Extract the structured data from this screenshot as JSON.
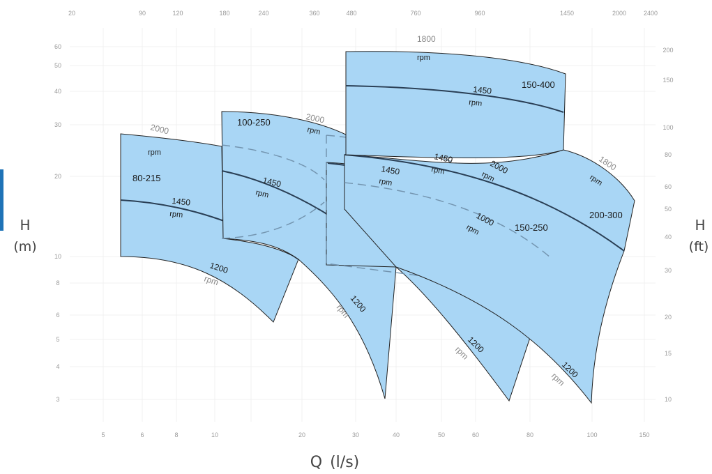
{
  "chart_data": {
    "type": "area",
    "title": "",
    "xlabel": "Q (l/s)",
    "ylabel_left": "H\n(m)",
    "ylabel_right": "H\n(ft)",
    "x_scale": "log",
    "y_scale": "log",
    "xlim": [
      4.3,
      160
    ],
    "ylim": [
      2.7,
      75
    ],
    "grid": true,
    "x_ticks_bottom": [
      "5",
      "6",
      "8",
      "10",
      "20",
      "30",
      "40",
      "50",
      "60",
      "80",
      "100",
      "150"
    ],
    "x_ticks_top": [
      "20",
      "90",
      "120",
      "180",
      "240",
      "360",
      "480",
      "760",
      "960",
      "1450",
      "2000",
      "2400"
    ],
    "y_ticks_left": [
      "60",
      "50",
      "40",
      "30",
      "20",
      "10",
      "8",
      "6",
      "5",
      "4",
      "3"
    ],
    "y_ticks_right": [
      "200",
      "150",
      "100",
      "80",
      "60",
      "50",
      "40",
      "30",
      "20",
      "15",
      "10"
    ],
    "series": [
      {
        "name": "80-215",
        "curves": [
          {
            "rpm": "2000",
            "points": [
              [
                5.3,
                26.5
              ],
              [
                7.5,
                24.5
              ],
              [
                10.5,
                23.0
              ]
            ]
          },
          {
            "rpm": "1450",
            "points": [
              [
                5.3,
                15.7
              ],
              [
                8.0,
                15.2
              ],
              [
                12.0,
                14.0
              ],
              [
                16.0,
                12.2
              ],
              [
                21.0,
                10.2
              ]
            ]
          },
          {
            "rpm": "1200",
            "points": [
              [
                5.3,
                10.0
              ],
              [
                7.0,
                9.8
              ],
              [
                10.0,
                8.8
              ],
              [
                13.5,
                7.2
              ],
              [
                16.5,
                5.8
              ]
            ]
          }
        ]
      },
      {
        "name": "100-250",
        "curves": [
          {
            "rpm": "2000",
            "points": [
              [
                10.3,
                32.0
              ],
              [
                15.0,
                31.0
              ],
              [
                21.0,
                29.0
              ],
              [
                28.0,
                26.0
              ]
            ]
          },
          {
            "rpm": "1450",
            "points": [
              [
                10.5,
                21.0
              ],
              [
                16.0,
                19.5
              ],
              [
                24.0,
                16.5
              ],
              [
                30.0,
                13.5
              ],
              [
                37.0,
                9.8
              ]
            ]
          },
          {
            "rpm": "1200",
            "points": [
              [
                21.0,
                10.2
              ],
              [
                26.0,
                8.7
              ],
              [
                31.0,
                6.8
              ],
              [
                34.0,
                5.0
              ],
              [
                36.5,
                3.0
              ]
            ]
          }
        ]
      },
      {
        "name": "150-400",
        "curves": [
          {
            "rpm": "1800",
            "points": [
              [
                27.0,
                58.0
              ],
              [
                45.0,
                57.5
              ],
              [
                65.0,
                54.0
              ],
              [
                88.0,
                47.5
              ]
            ]
          },
          {
            "rpm": "1450",
            "points": [
              [
                27.0,
                42.0
              ],
              [
                45.0,
                40.0
              ],
              [
                65.0,
                37.0
              ],
              [
                88.0,
                33.5
              ]
            ]
          }
        ]
      },
      {
        "name": "150-250",
        "curves": [
          {
            "rpm": "2000",
            "points": [
              [
                25.0,
                27.0
              ],
              [
                40.0,
                25.5
              ],
              [
                62.0,
                22.5
              ],
              [
                88.0,
                19.0
              ]
            ]
          },
          {
            "rpm": "1450",
            "points": [
              [
                25.0,
                21.5
              ],
              [
                35.0,
                20.0
              ],
              [
                45.0,
                18.0
              ],
              [
                58.0,
                15.0
              ],
              [
                72.0,
                12.0
              ],
              [
                87.0,
                9.5
              ]
            ]
          },
          {
            "rpm": "1000",
            "points": [
              [
                27.0,
                15.5
              ],
              [
                40.0,
                14.5
              ],
              [
                58.0,
                12.5
              ],
              [
                75.0,
                10.5
              ],
              [
                87.0,
                8.8
              ]
            ]
          },
          {
            "rpm": "1200",
            "points": [
              [
                37.0,
                9.8
              ],
              [
                48.0,
                8.2
              ],
              [
                58.0,
                6.5
              ],
              [
                66.0,
                4.8
              ],
              [
                73.0,
                3.0
              ]
            ]
          }
        ]
      },
      {
        "name": "200-300",
        "curves": [
          {
            "rpm": "1800",
            "points": [
              [
                88.0,
                25.0
              ],
              [
                105.0,
                23.0
              ],
              [
                125.0,
                19.5
              ],
              [
                145.0,
                16.5
              ]
            ]
          },
          {
            "rpm": "1450",
            "points": [
              [
                30.0,
                23.0
              ],
              [
                45.0,
                22.0
              ],
              [
                65.0,
                20.0
              ],
              [
                90.0,
                16.5
              ],
              [
                125.0,
                12.5
              ],
              [
                140.0,
                10.5
              ]
            ]
          },
          {
            "rpm": "1200",
            "points": [
              [
                40.0,
                12.5
              ],
              [
                60.0,
                11.2
              ],
              [
                80.0,
                8.5
              ],
              [
                90.0,
                6.8
              ],
              [
                100.0,
                2.9
              ]
            ]
          }
        ]
      }
    ],
    "labels": {
      "models": [
        "80-215",
        "100-250",
        "150-400",
        "150-250",
        "200-300"
      ],
      "speeds": [
        "2000",
        "1450",
        "1200",
        "1800",
        "1000"
      ],
      "rpm": "rpm"
    }
  },
  "axis": {
    "q_title": "Q (l/s)",
    "h_m_top": "H",
    "h_m_bottom": "(m)",
    "h_ft_top": "H",
    "h_ft_bottom": "(ft)"
  },
  "colors": {
    "region_fill": "#a9d6f5",
    "curve": "#2a3f55",
    "accent": "#1f73b7"
  }
}
